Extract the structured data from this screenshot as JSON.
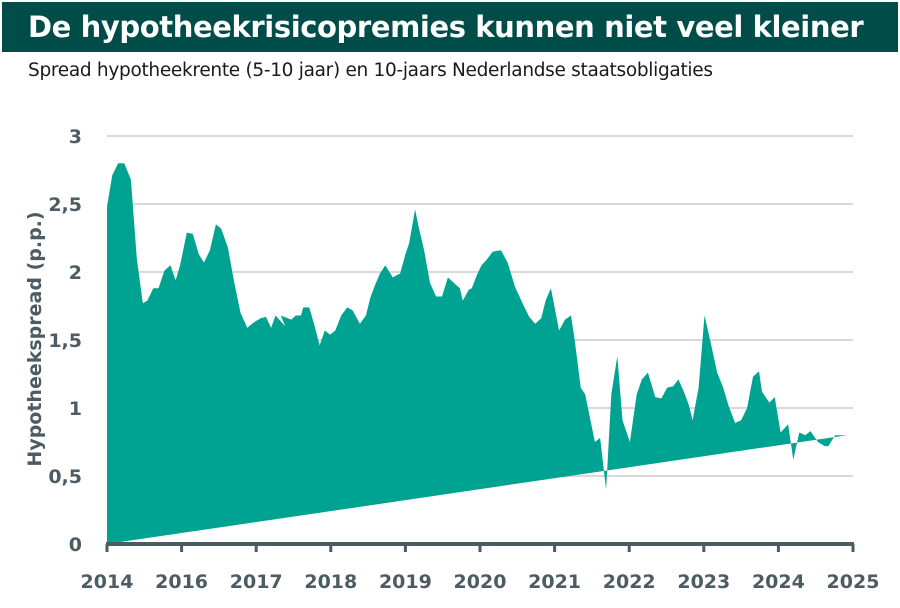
{
  "header": {
    "title": "De hypotheekrisicopremies kunnen niet veel kleiner",
    "subtitle": "Spread hypotheekrente (5-10 jaar) en 10-jaars Nederlandse staatsobligaties"
  },
  "colors": {
    "title_bg": "#004c48",
    "area_fill": "#00a391",
    "grid": "#d9d9d9",
    "axis": "#4d5b63",
    "tick_text": "#4d5b63"
  },
  "chart_data": {
    "type": "area",
    "title": "De hypotheekrisicopremies kunnen niet veel kleiner",
    "subtitle": "Spread hypotheekrente (5-10 jaar) en 10-jaars Nederlandse staatsobligaties",
    "xlabel": "",
    "ylabel": "Hypotheekspread (p.p.)",
    "ylim": [
      0,
      3
    ],
    "y_ticks": [
      "0",
      "0,5",
      "1",
      "1,5",
      "2",
      "2,5",
      "3"
    ],
    "y_tick_values": [
      0,
      0.5,
      1,
      1.5,
      2,
      2.5,
      3
    ],
    "x_ticks": [
      "2014",
      "2016",
      "2017",
      "2018",
      "2019",
      "2020",
      "2021",
      "2022",
      "2023",
      "2024",
      "2025"
    ],
    "grid": true,
    "legend": "none",
    "series": [
      {
        "name": "Hypotheekspread (p.p.)",
        "x_pos": [
          0.0,
          0.007,
          0.015,
          0.023,
          0.032,
          0.04,
          0.048,
          0.054,
          0.062,
          0.069,
          0.077,
          0.085,
          0.092,
          0.098,
          0.107,
          0.115,
          0.123,
          0.13,
          0.138,
          0.146,
          0.153,
          0.162,
          0.17,
          0.179,
          0.188,
          0.197,
          0.206,
          0.213,
          0.22,
          0.226,
          0.239,
          0.233,
          0.247,
          0.253,
          0.26,
          0.263,
          0.271,
          0.278,
          0.285,
          0.292,
          0.299,
          0.306,
          0.314,
          0.322,
          0.329,
          0.339,
          0.347,
          0.353,
          0.359,
          0.366,
          0.373,
          0.383,
          0.393,
          0.4,
          0.405,
          0.413,
          0.417,
          0.425,
          0.433,
          0.441,
          0.449,
          0.457,
          0.465,
          0.473,
          0.477,
          0.485,
          0.489,
          0.496,
          0.502,
          0.509,
          0.517,
          0.528,
          0.537,
          0.547,
          0.557,
          0.566,
          0.574,
          0.582,
          0.588,
          0.595,
          0.606,
          0.614,
          0.622,
          0.627,
          0.635,
          0.641,
          0.654,
          0.661,
          0.669,
          0.676,
          0.684,
          0.691,
          0.701,
          0.71,
          0.717,
          0.725,
          0.735,
          0.743,
          0.751,
          0.759,
          0.766,
          0.774,
          0.78,
          0.785,
          0.793,
          0.801,
          0.808,
          0.818,
          0.826,
          0.833,
          0.842,
          0.85,
          0.858,
          0.866,
          0.874,
          0.878,
          0.888,
          0.895,
          0.903,
          0.913,
          0.92,
          0.928,
          0.936,
          0.943,
          0.953,
          0.962,
          0.967,
          0.976,
          0.985,
          0.992,
          1.0
        ],
        "values": [
          2.48,
          2.71,
          2.8,
          2.8,
          2.68,
          2.1,
          1.77,
          1.79,
          1.88,
          1.88,
          2.01,
          2.05,
          1.94,
          2.05,
          2.29,
          2.28,
          2.13,
          2.07,
          2.16,
          2.35,
          2.32,
          2.18,
          1.94,
          1.7,
          1.59,
          1.63,
          1.66,
          1.67,
          1.59,
          1.68,
          1.6,
          1.68,
          1.65,
          1.68,
          1.68,
          1.74,
          1.74,
          1.61,
          1.46,
          1.57,
          1.54,
          1.57,
          1.68,
          1.74,
          1.72,
          1.62,
          1.68,
          1.81,
          1.9,
          1.99,
          2.05,
          1.96,
          1.99,
          2.13,
          2.21,
          2.46,
          2.35,
          2.16,
          1.92,
          1.82,
          1.82,
          1.96,
          1.92,
          1.88,
          1.79,
          1.87,
          1.88,
          1.98,
          2.05,
          2.09,
          2.15,
          2.16,
          2.07,
          1.89,
          1.77,
          1.67,
          1.62,
          1.66,
          1.79,
          1.88,
          1.57,
          1.65,
          1.68,
          1.5,
          1.15,
          1.1,
          0.75,
          0.78,
          0.4,
          1.1,
          1.38,
          0.91,
          0.75,
          1.1,
          1.21,
          1.26,
          1.08,
          1.07,
          1.15,
          1.16,
          1.21,
          1.11,
          1.02,
          0.91,
          1.15,
          1.68,
          1.51,
          1.26,
          1.15,
          1.02,
          0.89,
          0.91,
          1.0,
          1.23,
          1.27,
          1.12,
          1.04,
          1.08,
          0.82,
          0.88,
          0.62,
          0.82,
          0.8,
          0.83,
          0.75,
          0.72,
          0.72,
          0.8,
          0.8,
          0.8
        ]
      }
    ]
  }
}
